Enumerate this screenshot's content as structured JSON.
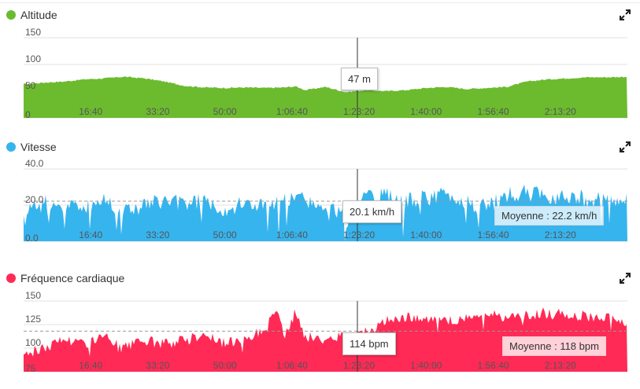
{
  "colors": {
    "altitude": "#6cbb2f",
    "speed": "#36b4ee",
    "heart": "#ff2a55",
    "avg_heart_bg": "#ffe3e8"
  },
  "chart_data": [
    {
      "type": "area",
      "title": "Altitude",
      "yticks": [
        "150",
        "100",
        "50",
        "0"
      ],
      "ylim": [
        0,
        150
      ],
      "xticks": [
        "16:40",
        "33:20",
        "50:00",
        "1:06:40",
        "1:23:20",
        "1:40:00",
        "1:56:40",
        "2:13:20"
      ],
      "xlim_seconds": [
        0,
        9000
      ],
      "x_seconds": [
        0,
        300,
        600,
        900,
        1200,
        1500,
        1800,
        2100,
        2400,
        2700,
        3000,
        3300,
        3600,
        3900,
        4050,
        4200,
        4500,
        4800,
        5100,
        5400,
        5700,
        6000,
        6300,
        6600,
        6900,
        7200,
        7500,
        7800,
        8100,
        8400,
        8700,
        9000
      ],
      "values": [
        63,
        66,
        68,
        72,
        74,
        77,
        74,
        68,
        60,
        57,
        56,
        57,
        56,
        57,
        59,
        52,
        58,
        48,
        52,
        50,
        52,
        56,
        58,
        54,
        56,
        58,
        68,
        72,
        74,
        76,
        76,
        77
      ],
      "cursor_label": "47 m"
    },
    {
      "type": "area",
      "title": "Vitesse",
      "yticks": [
        "40.0",
        "20.0",
        "0.0"
      ],
      "ylim": [
        0,
        40
      ],
      "xticks": [
        "16:40",
        "33:20",
        "50:00",
        "1:06:40",
        "1:23:20",
        "1:40:00",
        "1:56:40",
        "2:13:20"
      ],
      "xlim_seconds": [
        0,
        9000
      ],
      "x_seconds": [
        0,
        300,
        600,
        900,
        1200,
        1500,
        1800,
        2100,
        2400,
        2700,
        3000,
        3300,
        3600,
        3900,
        4200,
        4500,
        4800,
        5100,
        5400,
        5700,
        6000,
        6300,
        6600,
        6900,
        7200,
        7500,
        7800,
        8100,
        8400,
        8700,
        9000
      ],
      "values": [
        18,
        21,
        20,
        19,
        23,
        17,
        20,
        22,
        21,
        23,
        18,
        21,
        20,
        22,
        24,
        15,
        20,
        23,
        25,
        22,
        24,
        26,
        21,
        19,
        25,
        27,
        24,
        26,
        23,
        24,
        22
      ],
      "average": 22.2,
      "average_label": "Moyenne : 22.2 km/h",
      "cursor_label": "20.1 km/h"
    },
    {
      "type": "area",
      "title": "Fréquence cardiaque",
      "yticks": [
        "150",
        "125",
        "100",
        "75"
      ],
      "ylim": [
        75,
        150
      ],
      "xticks": [
        "16:40",
        "33:20",
        "50:00",
        "1:06:40",
        "1:23:20",
        "1:40:00",
        "1:56:40",
        "2:13:20"
      ],
      "xlim_seconds": [
        0,
        9000
      ],
      "x_seconds": [
        0,
        300,
        600,
        900,
        1200,
        1500,
        1800,
        2100,
        2400,
        2700,
        3000,
        3300,
        3600,
        3750,
        3900,
        4050,
        4200,
        4500,
        4800,
        5100,
        5400,
        5700,
        6000,
        6300,
        6600,
        6900,
        7200,
        7500,
        7800,
        8100,
        8400,
        8700,
        9000
      ],
      "values": [
        95,
        100,
        110,
        105,
        112,
        100,
        108,
        104,
        110,
        115,
        104,
        112,
        118,
        142,
        112,
        138,
        112,
        108,
        114,
        118,
        128,
        135,
        130,
        128,
        132,
        136,
        133,
        134,
        138,
        136,
        134,
        132,
        128
      ],
      "average": 118,
      "average_label": "Moyenne : 118 bpm",
      "cursor_label": "114 bpm"
    }
  ]
}
